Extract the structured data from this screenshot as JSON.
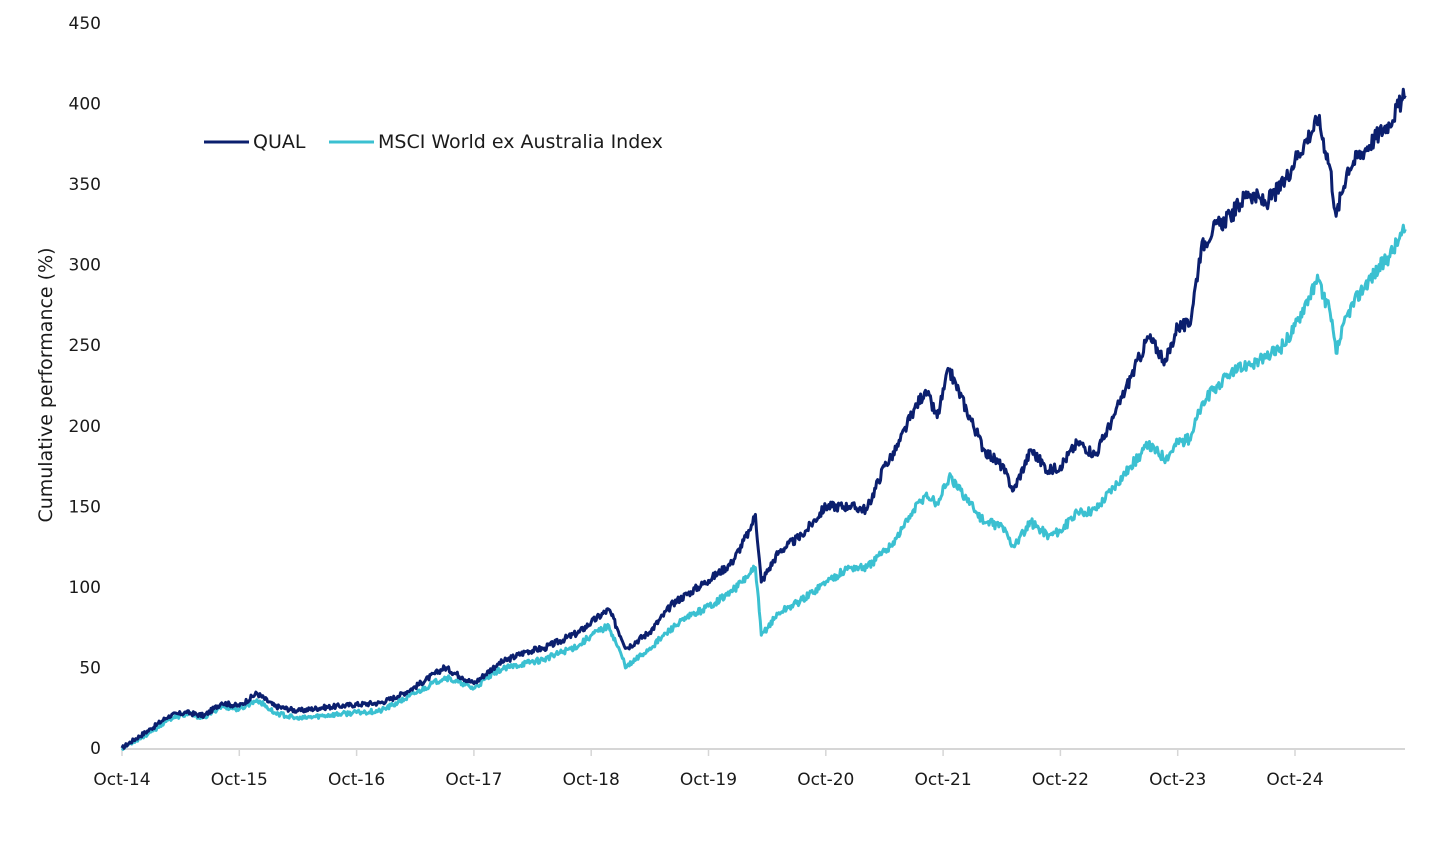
{
  "chart_data": {
    "type": "line",
    "title": "",
    "xlabel": "",
    "ylabel": "Cumulative performance (%)",
    "ylim": [
      0,
      450
    ],
    "yticks": [
      0,
      50,
      100,
      150,
      200,
      250,
      300,
      350,
      400,
      450
    ],
    "xlim": [
      "2014-10",
      "2025-09"
    ],
    "xticks": [
      "Oct-14",
      "Oct-15",
      "Oct-16",
      "Oct-17",
      "Oct-18",
      "Oct-19",
      "Oct-20",
      "Oct-21",
      "Oct-22",
      "Oct-23",
      "Oct-24"
    ],
    "grid": false,
    "legend_position": "top-left",
    "series": [
      {
        "name": "QUAL",
        "color": "#0b1f6e",
        "x": [
          0,
          0.1,
          0.25,
          0.4,
          0.55,
          0.7,
          0.85,
          1.0,
          1.15,
          1.3,
          1.5,
          1.7,
          2.0,
          2.2,
          2.35,
          2.5,
          2.75,
          2.9,
          3.0,
          3.2,
          3.45,
          3.6,
          3.9,
          4.0,
          4.15,
          4.3,
          4.5,
          4.7,
          4.85,
          5.0,
          5.2,
          5.35,
          5.4,
          5.45,
          5.6,
          5.8,
          6.0,
          6.2,
          6.35,
          6.5,
          6.6,
          6.75,
          6.85,
          6.95,
          7.05,
          7.2,
          7.35,
          7.5,
          7.6,
          7.75,
          7.9,
          8.0,
          8.15,
          8.3,
          8.45,
          8.6,
          8.75,
          8.9,
          9.0,
          9.1,
          9.2,
          9.3,
          9.45,
          9.6,
          9.75,
          9.9,
          10.0,
          10.1,
          10.2,
          10.3,
          10.35,
          10.45,
          10.6,
          10.8,
          10.94
        ],
        "values": [
          0,
          5,
          12,
          20,
          22,
          20,
          28,
          26,
          34,
          26,
          23,
          25,
          27,
          28,
          32,
          38,
          50,
          44,
          40,
          52,
          60,
          62,
          72,
          78,
          86,
          62,
          72,
          90,
          97,
          104,
          115,
          135,
          145,
          103,
          122,
          132,
          150,
          150,
          148,
          175,
          185,
          210,
          222,
          205,
          235,
          210,
          185,
          175,
          160,
          185,
          172,
          175,
          190,
          182,
          205,
          230,
          255,
          240,
          262,
          262,
          310,
          322,
          330,
          345,
          338,
          350,
          365,
          378,
          390,
          360,
          330,
          360,
          372,
          388,
          405
        ]
      },
      {
        "name": "MSCI World ex Australia Index",
        "color": "#3bc0d1",
        "x": [
          0,
          0.1,
          0.25,
          0.4,
          0.55,
          0.7,
          0.85,
          1.0,
          1.15,
          1.3,
          1.5,
          1.7,
          2.0,
          2.2,
          2.35,
          2.5,
          2.75,
          2.9,
          3.0,
          3.2,
          3.45,
          3.6,
          3.9,
          4.0,
          4.15,
          4.3,
          4.5,
          4.7,
          4.85,
          5.0,
          5.2,
          5.35,
          5.4,
          5.45,
          5.6,
          5.8,
          6.0,
          6.2,
          6.35,
          6.5,
          6.6,
          6.75,
          6.85,
          6.95,
          7.05,
          7.2,
          7.35,
          7.5,
          7.6,
          7.75,
          7.9,
          8.0,
          8.15,
          8.3,
          8.45,
          8.6,
          8.75,
          8.9,
          9.0,
          9.1,
          9.2,
          9.3,
          9.45,
          9.6,
          9.75,
          9.9,
          10.0,
          10.1,
          10.2,
          10.3,
          10.35,
          10.45,
          10.6,
          10.8,
          10.94
        ],
        "values": [
          0,
          4,
          10,
          18,
          21,
          19,
          26,
          24,
          30,
          22,
          18,
          20,
          22,
          23,
          28,
          34,
          44,
          40,
          37,
          48,
          53,
          55,
          64,
          70,
          76,
          50,
          62,
          75,
          82,
          88,
          97,
          108,
          112,
          70,
          84,
          92,
          103,
          112,
          112,
          122,
          130,
          148,
          157,
          152,
          168,
          155,
          140,
          138,
          125,
          140,
          132,
          135,
          146,
          148,
          162,
          175,
          188,
          180,
          190,
          192,
          212,
          222,
          232,
          238,
          242,
          250,
          262,
          278,
          290,
          270,
          245,
          270,
          288,
          305,
          322
        ]
      }
    ]
  },
  "legend": {
    "items": [
      {
        "label": "QUAL",
        "color": "#0b1f6e"
      },
      {
        "label": "MSCI World ex Australia Index",
        "color": "#3bc0d1"
      }
    ]
  }
}
